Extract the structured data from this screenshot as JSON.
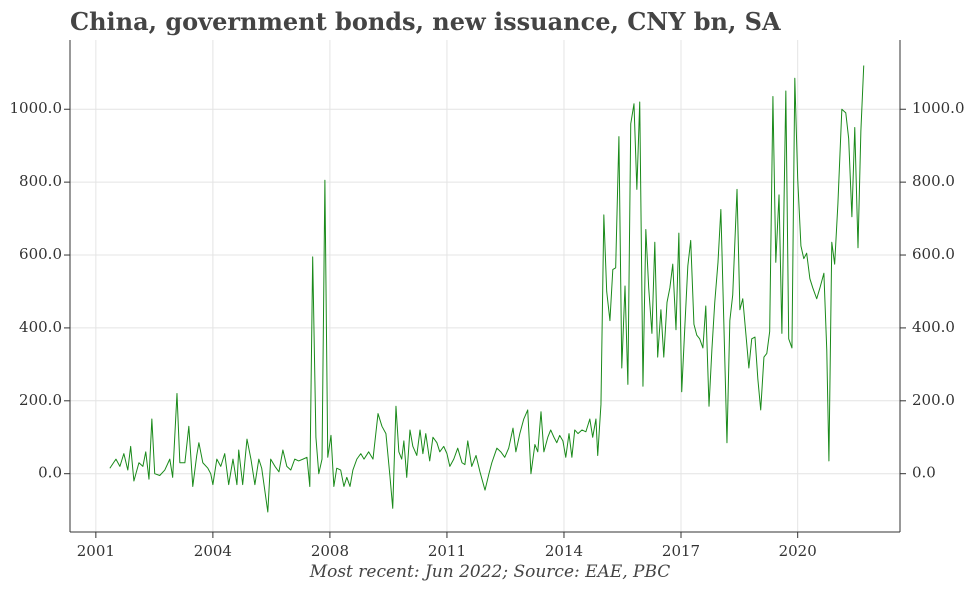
{
  "chart_data": {
    "type": "line",
    "title": "China, government bonds, new issuance, CNY bn, SA",
    "note": "Most recent: Jun 2022; Source: EAE, PBC",
    "grid": true,
    "xlim": [
      2000.39,
      2023.51
    ],
    "xticks": [
      {
        "value": 2001.11,
        "label": "2001"
      },
      {
        "value": 2004.37,
        "label": "2004"
      },
      {
        "value": 2007.63,
        "label": "2008"
      },
      {
        "value": 2010.89,
        "label": "2011"
      },
      {
        "value": 2014.15,
        "label": "2014"
      },
      {
        "value": 2017.41,
        "label": "2017"
      },
      {
        "value": 2020.66,
        "label": "2020"
      }
    ],
    "ylim": [
      -160,
      1190
    ],
    "yticks": [
      {
        "value": 0,
        "label": "0.0"
      },
      {
        "value": 200,
        "label": "200.0"
      },
      {
        "value": 400,
        "label": "400.0"
      },
      {
        "value": 600,
        "label": "600.0"
      },
      {
        "value": 800,
        "label": "800.0"
      },
      {
        "value": 1000,
        "label": "1000.0"
      }
    ],
    "x": [
      2001.5,
      2001.67,
      2001.78,
      2001.89,
      2002.0,
      2002.08,
      2002.17,
      2002.31,
      2002.42,
      2002.5,
      2002.59,
      2002.67,
      2002.75,
      2002.89,
      2003.03,
      2003.17,
      2003.25,
      2003.37,
      2003.45,
      2003.59,
      2003.7,
      2003.81,
      2003.92,
      2003.98,
      2004.09,
      2004.23,
      2004.31,
      2004.37,
      2004.48,
      2004.59,
      2004.7,
      2004.81,
      2004.93,
      2005.04,
      2005.09,
      2005.2,
      2005.32,
      2005.43,
      2005.54,
      2005.65,
      2005.73,
      2005.9,
      2005.98,
      2006.1,
      2006.21,
      2006.32,
      2006.43,
      2006.54,
      2006.65,
      2006.76,
      2006.88,
      2006.99,
      2007.07,
      2007.15,
      2007.24,
      2007.32,
      2007.41,
      2007.49,
      2007.57,
      2007.66,
      2007.74,
      2007.82,
      2007.93,
      2008.02,
      2008.1,
      2008.19,
      2008.27,
      2008.38,
      2008.49,
      2008.58,
      2008.71,
      2008.83,
      2008.97,
      2009.08,
      2009.19,
      2009.3,
      2009.38,
      2009.47,
      2009.55,
      2009.63,
      2009.69,
      2009.77,
      2009.86,
      2009.94,
      2010.05,
      2010.14,
      2010.22,
      2010.3,
      2010.41,
      2010.5,
      2010.61,
      2010.69,
      2010.8,
      2010.89,
      2010.97,
      2011.08,
      2011.19,
      2011.31,
      2011.39,
      2011.47,
      2011.58,
      2011.7,
      2011.81,
      2011.95,
      2012.06,
      2012.14,
      2012.28,
      2012.39,
      2012.5,
      2012.61,
      2012.73,
      2012.81,
      2012.92,
      2013.03,
      2013.14,
      2013.23,
      2013.34,
      2013.42,
      2013.51,
      2013.59,
      2013.7,
      2013.78,
      2013.87,
      2013.95,
      2014.03,
      2014.12,
      2014.2,
      2014.29,
      2014.37,
      2014.45,
      2014.54,
      2014.65,
      2014.76,
      2014.87,
      2014.95,
      2015.04,
      2015.09,
      2015.18,
      2015.26,
      2015.34,
      2015.43,
      2015.51,
      2015.59,
      2015.68,
      2015.76,
      2015.85,
      2015.93,
      2016.01,
      2016.1,
      2016.18,
      2016.26,
      2016.35,
      2016.43,
      2016.51,
      2016.6,
      2016.68,
      2016.76,
      2016.85,
      2016.93,
      2017.02,
      2017.1,
      2017.18,
      2017.27,
      2017.35,
      2017.43,
      2017.52,
      2017.6,
      2017.68,
      2017.77,
      2017.85,
      2017.93,
      2018.02,
      2018.1,
      2018.19,
      2018.27,
      2018.35,
      2018.44,
      2018.52,
      2018.6,
      2018.69,
      2018.77,
      2018.85,
      2018.97,
      2019.05,
      2019.13,
      2019.22,
      2019.3,
      2019.38,
      2019.47,
      2019.55,
      2019.63,
      2019.72,
      2019.8,
      2019.88,
      2019.97,
      2020.05,
      2020.14,
      2020.22,
      2020.33,
      2020.41,
      2020.5,
      2020.58,
      2020.66,
      2020.75,
      2020.83,
      2020.91,
      2021.0,
      2021.08,
      2021.19,
      2021.28,
      2021.39,
      2021.47,
      2021.53,
      2021.61,
      2021.69,
      2021.78,
      2021.89,
      2022.0,
      2022.08,
      2022.17,
      2022.25,
      2022.34,
      2022.42,
      2022.5
    ],
    "series": [
      {
        "color": "#1a8a1a",
        "values": [
          15,
          40,
          20,
          55,
          10,
          75,
          -20,
          30,
          20,
          60,
          -15,
          150,
          0,
          -5,
          10,
          40,
          -10,
          220,
          30,
          30,
          130,
          -35,
          50,
          85,
          30,
          15,
          0,
          -30,
          40,
          20,
          55,
          -30,
          40,
          -30,
          65,
          -30,
          95,
          40,
          -30,
          40,
          15,
          -105,
          40,
          20,
          5,
          65,
          20,
          10,
          40,
          35,
          40,
          45,
          -35,
          595,
          100,
          0,
          40,
          805,
          45,
          105,
          -35,
          15,
          10,
          -35,
          -10,
          -35,
          10,
          40,
          55,
          40,
          60,
          40,
          165,
          130,
          110,
          -5,
          -95,
          185,
          60,
          40,
          90,
          -10,
          120,
          75,
          50,
          120,
          55,
          110,
          35,
          100,
          85,
          60,
          75,
          55,
          20,
          40,
          70,
          30,
          25,
          90,
          20,
          50,
          5,
          -45,
          0,
          30,
          70,
          60,
          45,
          70,
          125,
          60,
          110,
          150,
          175,
          0,
          80,
          60,
          170,
          60,
          100,
          120,
          100,
          85,
          105,
          90,
          45,
          110,
          45,
          120,
          110,
          120,
          115,
          150,
          100,
          150,
          50,
          190,
          710,
          500,
          420,
          560,
          565,
          925,
          290,
          515,
          245,
          960,
          1015,
          780,
          1020,
          240,
          670,
          510,
          385,
          635,
          320,
          450,
          320,
          470,
          510,
          575,
          395,
          660,
          225,
          410,
          570,
          640,
          410,
          380,
          370,
          345,
          460,
          185,
          340,
          470,
          580,
          725,
          425,
          85,
          420,
          490,
          780,
          450,
          480,
          380,
          290,
          370,
          375,
          260,
          175,
          320,
          330,
          390,
          1035,
          580,
          765,
          385,
          1050,
          370,
          345,
          1085,
          810,
          625,
          590,
          605,
          535,
          510,
          480,
          510,
          550,
          340,
          35,
          635,
          575,
          740,
          1000,
          990,
          920,
          705,
          950,
          620,
          940,
          1120
        ]
      }
    ]
  }
}
